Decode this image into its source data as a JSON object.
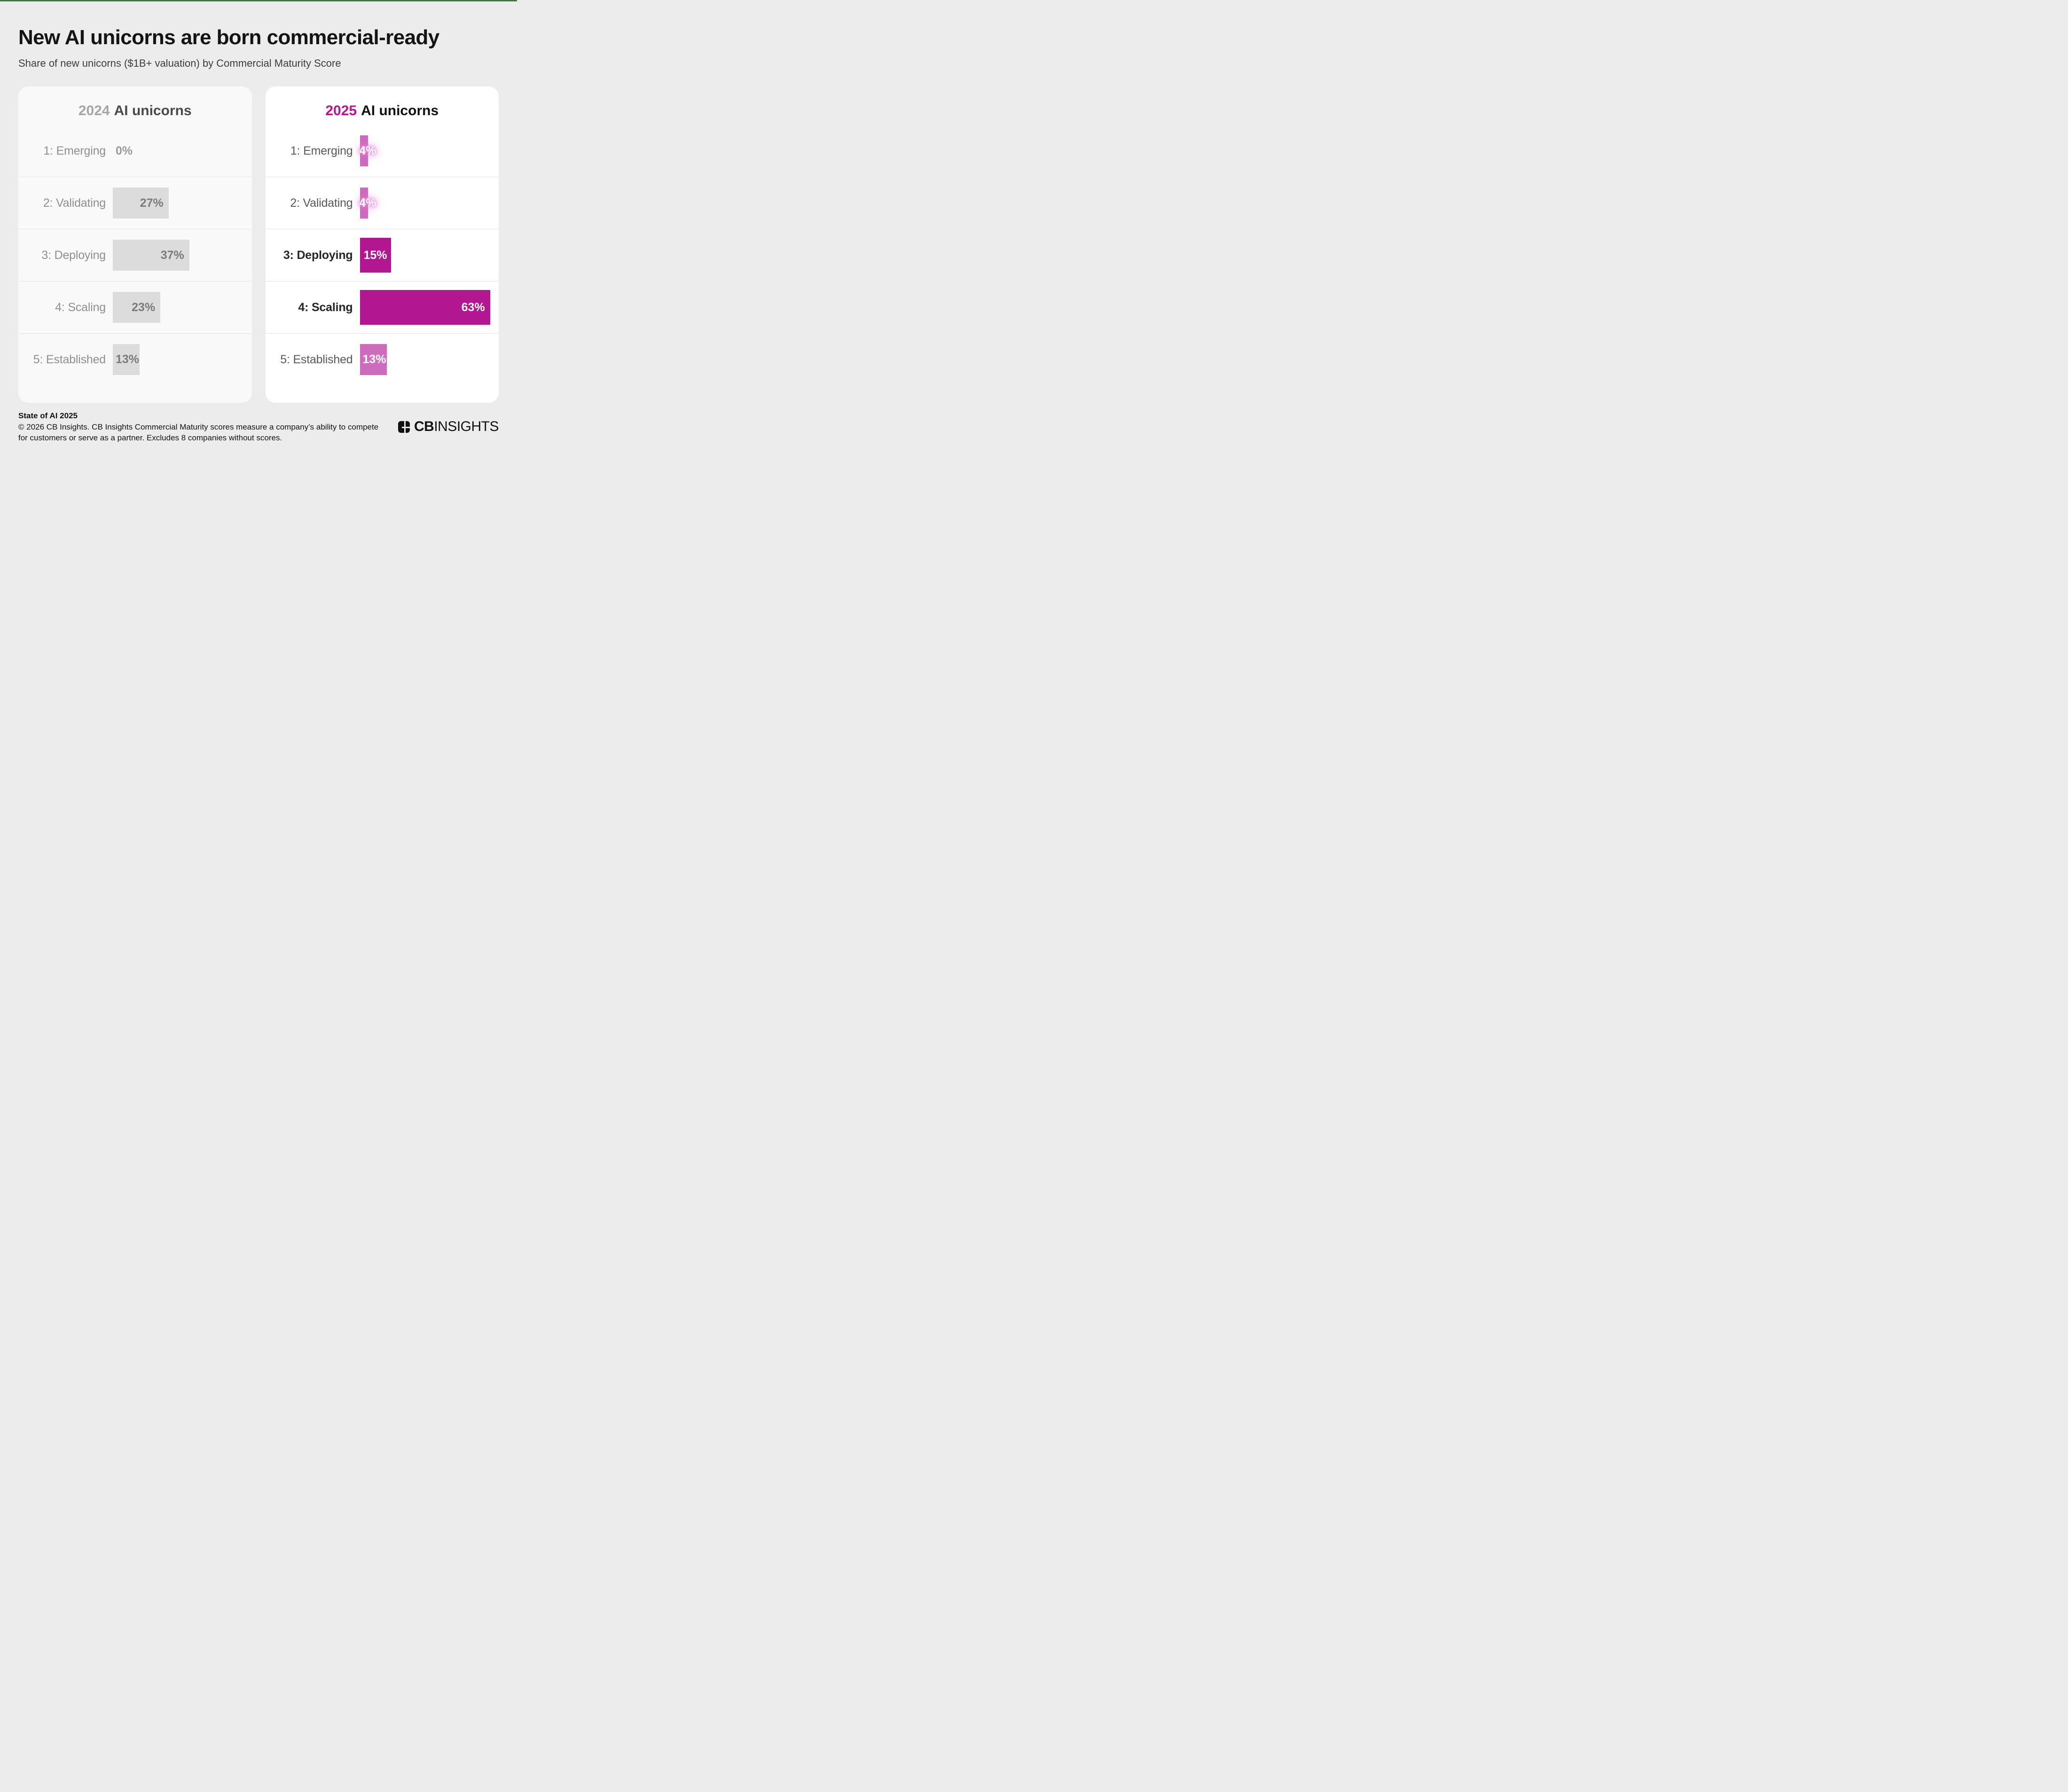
{
  "page": {
    "title": "New AI unicorns are born commercial-ready",
    "subtitle": "Share of new unicorns ($1B+ valuation) by Commercial Maturity Score"
  },
  "colors": {
    "page_bg": "#ececec",
    "top_accent_green": "#49714e",
    "divider": "#e2e2e2",
    "magenta_strong": "#b21690",
    "orchid_light": "#cd6cbd"
  },
  "chart_data": {
    "type": "bar",
    "orientation": "horizontal",
    "unit": "%",
    "grid": "row-dividers",
    "legend_position": "panel-headers",
    "axis_max_hint": 63,
    "categories": [
      "1: Emerging",
      "2: Validating",
      "3: Deploying",
      "4: Scaling",
      "5: Established"
    ],
    "series": [
      {
        "name": "2024 AI unicorns",
        "year": "2024",
        "title_rest": "AI unicorns",
        "values": [
          0,
          27,
          37,
          23,
          13
        ],
        "value_labels": [
          "0%",
          "27%",
          "37%",
          "23%",
          "13%"
        ],
        "emphasized_rows": [],
        "colors": {
          "card_bg": "#f9f9f9",
          "year_text": "#a6a6a6",
          "title_text": "#4a4a4a",
          "bar": "#dcdcdc",
          "bar_strong": "#dcdcdc",
          "label": "#8f8f8f",
          "label_strong": "#8f8f8f",
          "value_text": "#7b7b7b",
          "value_text_empty": "#9b9b9b"
        }
      },
      {
        "name": "2025 AI unicorns",
        "year": "2025",
        "title_rest": "AI unicorns",
        "values": [
          4,
          4,
          15,
          63,
          13
        ],
        "value_labels": [
          "4%",
          "4%",
          "15%",
          "63%",
          "13%"
        ],
        "emphasized_rows": [
          2,
          3
        ],
        "colors": {
          "card_bg": "#ffffff",
          "year_text": "#bd1390",
          "title_text": "#111111",
          "bar": "#cd6cbd",
          "bar_strong": "#b21690",
          "label": "#59595b",
          "label_strong": "#262626",
          "value_text": "#ffffff",
          "value_glow": "#e87fd6"
        }
      }
    ]
  },
  "footer": {
    "heading": "State of AI 2025",
    "line1": "© 2026 CB Insights. CB Insights Commercial Maturity scores measure a company’s ability to compete",
    "line2": "for customers or serve as a partner. Excludes 8 companies without scores."
  },
  "logo": {
    "bold": "CB",
    "light": "INSIGHTS"
  }
}
